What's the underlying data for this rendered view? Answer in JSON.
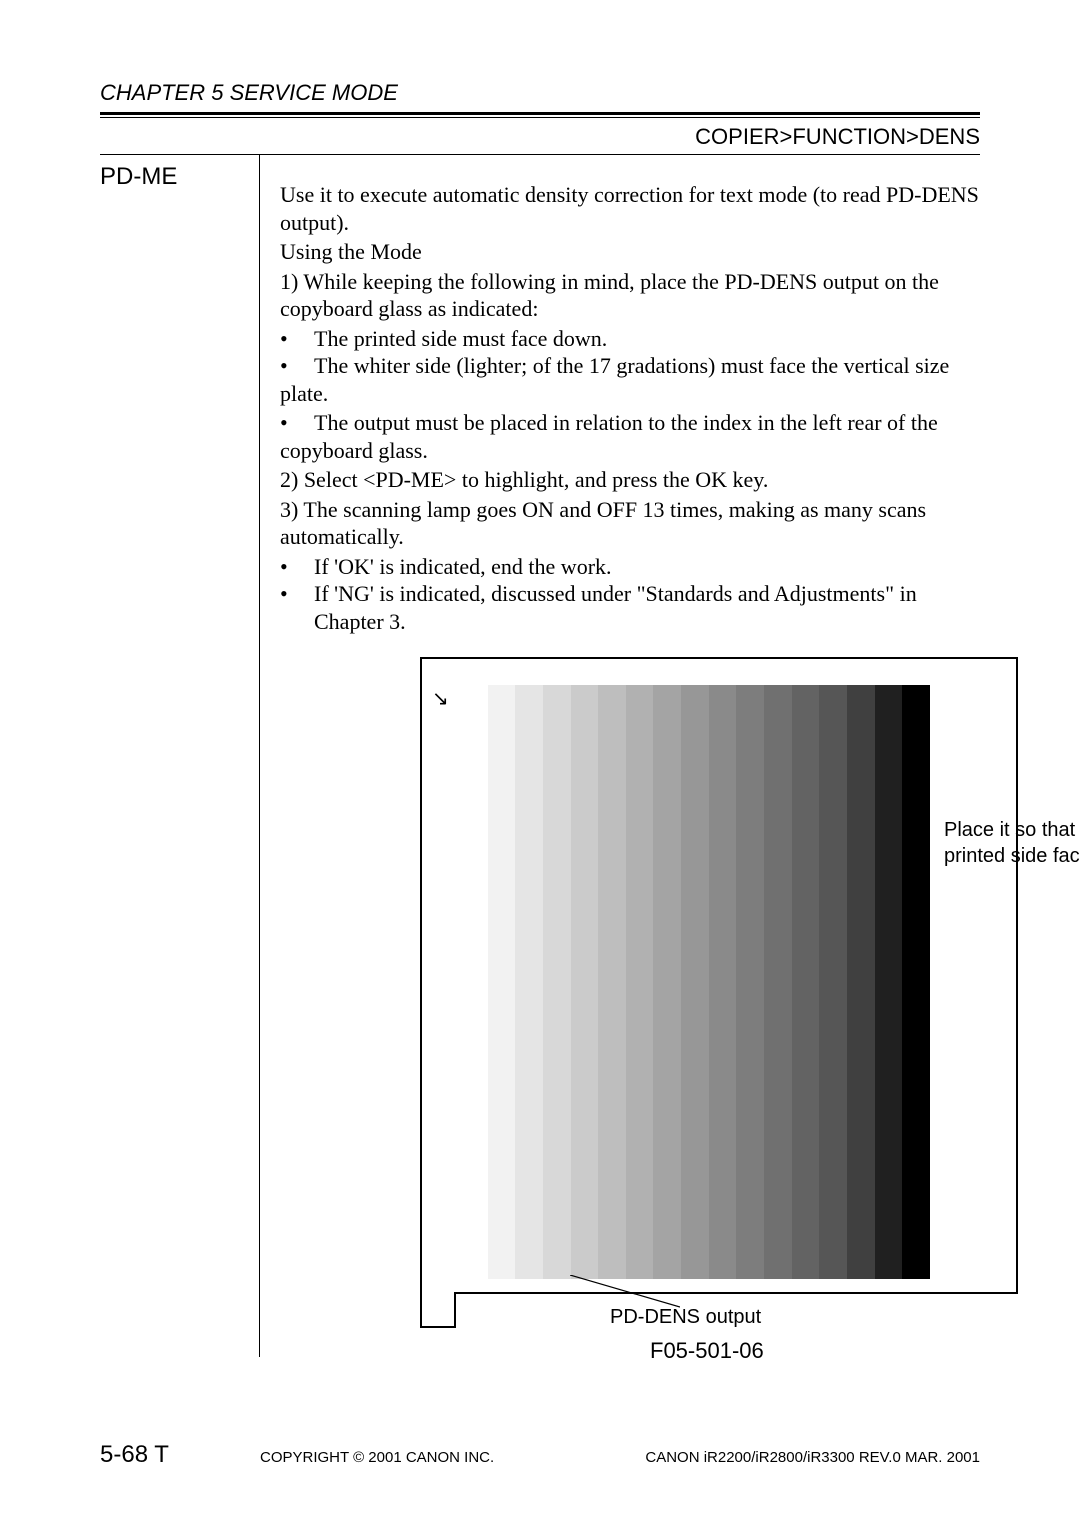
{
  "header": {
    "chapter": "CHAPTER 5 SERVICE MODE",
    "breadcrumb": "COPIER>FUNCTION>DENS"
  },
  "entry": {
    "label": "PD-ME",
    "intro1": "Use it to execute automatic density correction for text mode (to read PD-DENS output).",
    "usingMode": "Using the Mode",
    "step1a": "1)  While keeping the following in mind, place the PD-DENS output on the copyboard glass as indicated:",
    "b1": "The printed side must face down.",
    "b2a": "The whiter side (lighter; of the 17 gradations) must face the vertical size",
    "b2b": "plate.",
    "b3a": "The output must be placed in relation to the index in the left rear of the",
    "b3b": "copyboard glass.",
    "step2": "2)  Select <PD-ME> to highlight, and press the OK key.",
    "step3": "3)  The scanning lamp goes ON and OFF 13 times, making as many scans automatically.",
    "b4": "If 'OK' is indicated, end the work.",
    "b5": "If 'NG' is indicated, discussed under \"Standards and Adjustments\" in Chapter 3."
  },
  "figure": {
    "arrow_glyph": "↘",
    "annotation": "Place it so that the printed side faces down.",
    "pd_label": "PD-DENS output",
    "fig_num": "F05-501-06",
    "gradations": 17,
    "bar_colors": [
      "#ffffff",
      "#f2f2f2",
      "#e5e5e5",
      "#d8d8d8",
      "#cbcbcb",
      "#bebebe",
      "#b1b1b1",
      "#a4a4a4",
      "#979797",
      "#8a8a8a",
      "#7d7d7d",
      "#707070",
      "#636363",
      "#565656",
      "#404040",
      "#202020",
      "#000000"
    ]
  },
  "footer": {
    "page": "5-68 T",
    "copyright": "COPYRIGHT © 2001 CANON INC.",
    "rev": "CANON iR2200/iR2800/iR3300 REV.0 MAR. 2001"
  }
}
